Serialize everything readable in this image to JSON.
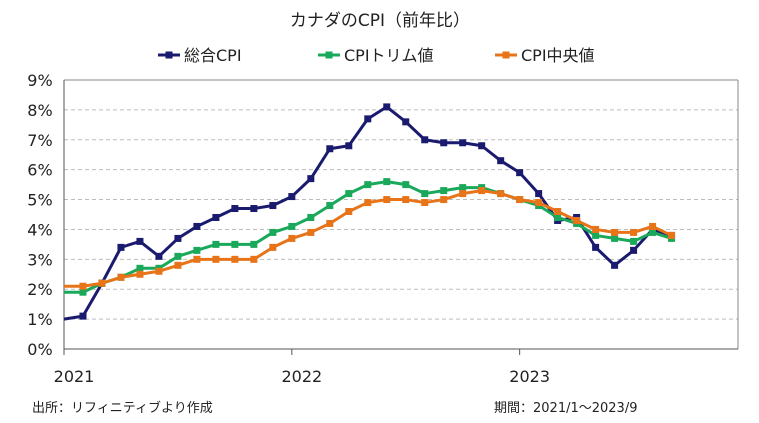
{
  "chart_data": {
    "type": "line",
    "title": "カナダのCPI（前年比）",
    "xlabel": "",
    "ylabel": "",
    "ylim": [
      0,
      9
    ],
    "y_tick_labels": [
      "0%",
      "1%",
      "2%",
      "3%",
      "4%",
      "5%",
      "6%",
      "7%",
      "8%",
      "9%"
    ],
    "x_tick_labels": [
      "2021",
      "2022",
      "2023"
    ],
    "x_tick_index": [
      0,
      12,
      24
    ],
    "grid": true,
    "legend_position": "top",
    "x": [
      "2021/1",
      "2021/2",
      "2021/3",
      "2021/4",
      "2021/5",
      "2021/6",
      "2021/7",
      "2021/8",
      "2021/9",
      "2021/10",
      "2021/11",
      "2021/12",
      "2022/1",
      "2022/2",
      "2022/3",
      "2022/4",
      "2022/5",
      "2022/6",
      "2022/7",
      "2022/8",
      "2022/9",
      "2022/10",
      "2022/11",
      "2022/12",
      "2023/1",
      "2023/2",
      "2023/3",
      "2023/4",
      "2023/5",
      "2023/6",
      "2023/7",
      "2023/8",
      "2023/9"
    ],
    "series": [
      {
        "name": "総合CPI",
        "color": "#1a1a6e",
        "values": [
          1.0,
          1.1,
          2.2,
          3.4,
          3.6,
          3.1,
          3.7,
          4.1,
          4.4,
          4.7,
          4.7,
          4.8,
          5.1,
          5.7,
          6.7,
          6.8,
          7.7,
          8.1,
          7.6,
          7.0,
          6.9,
          6.9,
          6.8,
          6.3,
          5.9,
          5.2,
          4.3,
          4.4,
          3.4,
          2.8,
          3.3,
          4.0,
          3.8
        ]
      },
      {
        "name": "CPIトリム値",
        "color": "#1aa85a",
        "values": [
          1.9,
          1.9,
          2.2,
          2.4,
          2.7,
          2.7,
          3.1,
          3.3,
          3.5,
          3.5,
          3.5,
          3.9,
          4.1,
          4.4,
          4.8,
          5.2,
          5.5,
          5.6,
          5.5,
          5.2,
          5.3,
          5.4,
          5.4,
          5.2,
          5.0,
          4.8,
          4.4,
          4.2,
          3.8,
          3.7,
          3.6,
          3.9,
          3.7
        ]
      },
      {
        "name": "CPI中央値",
        "color": "#e8741a",
        "values": [
          2.1,
          2.1,
          2.2,
          2.4,
          2.5,
          2.6,
          2.8,
          3.0,
          3.0,
          3.0,
          3.0,
          3.4,
          3.7,
          3.9,
          4.2,
          4.6,
          4.9,
          5.0,
          5.0,
          4.9,
          5.0,
          5.2,
          5.3,
          5.2,
          5.0,
          4.9,
          4.6,
          4.3,
          4.0,
          3.9,
          3.9,
          4.1,
          3.8
        ]
      }
    ]
  },
  "notes": {
    "source": "出所：リフィニティブより作成",
    "period": "期間：2021/1～2023/9"
  }
}
